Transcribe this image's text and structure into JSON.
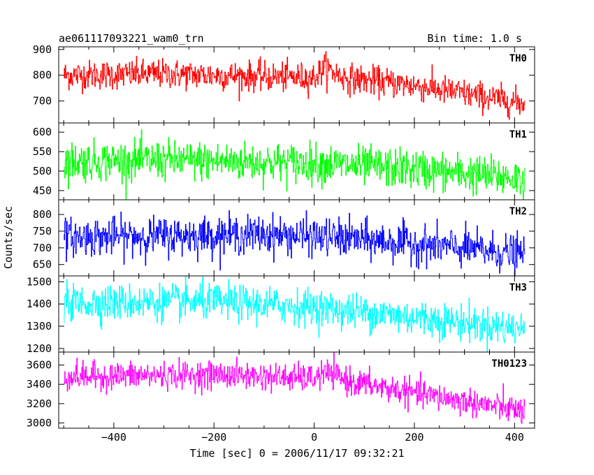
{
  "chart_data": {
    "type": "line",
    "title": "ae061117093221_wam0_trn",
    "subtitle": "Bin time: 1.0 s",
    "xlabel": "Time [sec] 0 = 2006/11/17 09:32:21",
    "ylabel": "Counts/sec",
    "xlim": [
      -510,
      440
    ],
    "x_ticks": [
      -400,
      -200,
      0,
      200,
      400
    ],
    "x_tick_labels": [
      "−400",
      "−200",
      "0",
      "200",
      "400"
    ],
    "x_start": -500,
    "x_end": 420,
    "bin_time": 1.0,
    "grid": false,
    "legend": "none",
    "panels": [
      {
        "name": "TH0",
        "color": "#ff0000",
        "ylim": [
          620,
          905
        ],
        "yticks": [
          700,
          800,
          900
        ],
        "ytick_labels": [
          "700",
          "800",
          "900"
        ],
        "trend": [
          [
            -500,
            800
          ],
          [
            -300,
            805
          ],
          [
            0,
            790
          ],
          [
            20,
            830
          ],
          [
            60,
            790
          ],
          [
            200,
            760
          ],
          [
            420,
            690
          ]
        ],
        "noise": 28
      },
      {
        "name": "TH1",
        "color": "#00ff00",
        "ylim": [
          430,
          620
        ],
        "yticks": [
          450,
          500,
          550,
          600
        ],
        "ytick_labels": [
          "450",
          "500",
          "550",
          "600"
        ],
        "trend": [
          [
            -500,
            525
          ],
          [
            -300,
            528
          ],
          [
            0,
            520
          ],
          [
            200,
            505
          ],
          [
            420,
            480
          ]
        ],
        "noise": 25
      },
      {
        "name": "TH2",
        "color": "#0000ff",
        "ylim": [
          620,
          840
        ],
        "yticks": [
          650,
          700,
          750,
          800
        ],
        "ytick_labels": [
          "650",
          "700",
          "750",
          "800"
        ],
        "trend": [
          [
            -500,
            732
          ],
          [
            -100,
            740
          ],
          [
            50,
            730
          ],
          [
            200,
            712
          ],
          [
            420,
            680
          ]
        ],
        "noise": 28
      },
      {
        "name": "TH3",
        "color": "#00ffff",
        "ylim": [
          1190,
          1520
        ],
        "yticks": [
          1200,
          1300,
          1400,
          1500
        ],
        "ytick_labels": [
          "1200",
          "1300",
          "1400",
          "1500"
        ],
        "trend": [
          [
            -500,
            1405
          ],
          [
            -200,
            1410
          ],
          [
            0,
            1385
          ],
          [
            200,
            1340
          ],
          [
            420,
            1285
          ]
        ],
        "noise": 40
      },
      {
        "name": "TH0123",
        "color": "#ff00ff",
        "ylim": [
          2960,
          3720
        ],
        "yticks": [
          3000,
          3200,
          3400,
          3600
        ],
        "ytick_labels": [
          "3000",
          "3200",
          "3400",
          "3600"
        ],
        "trend": [
          [
            -500,
            3480
          ],
          [
            -200,
            3500
          ],
          [
            0,
            3460
          ],
          [
            20,
            3520
          ],
          [
            80,
            3420
          ],
          [
            200,
            3310
          ],
          [
            420,
            3120
          ]
        ],
        "noise": 70
      }
    ]
  }
}
